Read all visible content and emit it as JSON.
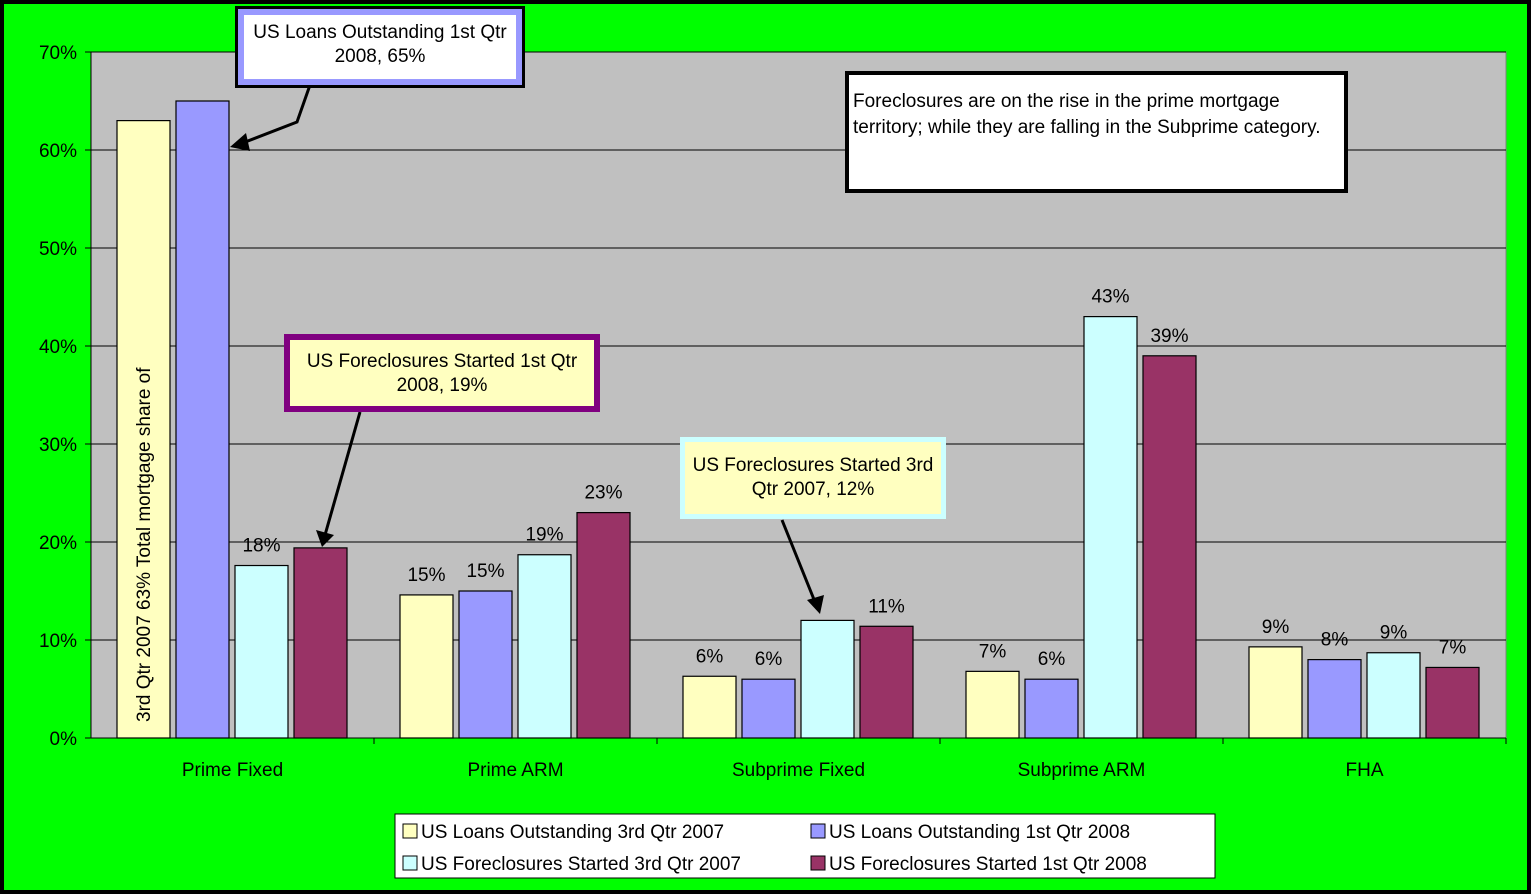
{
  "chart_data": {
    "type": "bar",
    "categories": [
      "Prime Fixed",
      "Prime ARM",
      "Subprime Fixed",
      "Subprime ARM",
      "FHA"
    ],
    "series": [
      {
        "name": "US Loans Outstanding 3rd Qtr 2007",
        "color": "#ffffc0",
        "values": [
          63,
          14.6,
          6.3,
          6.8,
          9.3
        ],
        "value_labels": [
          null,
          "15%",
          "6%",
          "7%",
          "9%"
        ]
      },
      {
        "name": "US Loans Outstanding 1st Qtr 2008",
        "color": "#9999ff",
        "values": [
          65,
          15,
          6,
          6,
          8
        ],
        "value_labels": [
          null,
          "15%",
          "6%",
          "6%",
          "8%"
        ]
      },
      {
        "name": "US Foreclosures Started 3rd Qtr 2007",
        "color": "#ccffff",
        "values": [
          17.6,
          18.7,
          12,
          43,
          8.7
        ],
        "value_labels": [
          "18%",
          "19%",
          null,
          "43%",
          "9%"
        ]
      },
      {
        "name": "US Foreclosures Started 1st Qtr 2008",
        "color": "#993366",
        "values": [
          19.4,
          23,
          11.4,
          39,
          7.2
        ],
        "value_labels": [
          null,
          "23%",
          "11%",
          "39%",
          "7%"
        ]
      }
    ],
    "ylim": [
      0,
      70
    ],
    "yticks": [
      {
        "value": 0,
        "label": "0%"
      },
      {
        "value": 10,
        "label": "10%"
      },
      {
        "value": 20,
        "label": "20%"
      },
      {
        "value": 30,
        "label": "30%"
      },
      {
        "value": 40,
        "label": "40%"
      },
      {
        "value": 50,
        "label": "50%"
      },
      {
        "value": 60,
        "label": "60%"
      },
      {
        "value": 70,
        "label": "70%"
      }
    ],
    "grid": true,
    "annotations": [
      "3rd  Qtr 2007 63% Total mortgage share of",
      "US Loans Outstanding 1st Qtr 2008, 65%",
      "US Foreclosures Started 1st Qtr 2008, 19%",
      "US Foreclosures Started 3rd Qtr 2007, 12%",
      "Foreclosures are on the rise in the prime mortgage territory; while they are falling in the Subprime category."
    ]
  }
}
